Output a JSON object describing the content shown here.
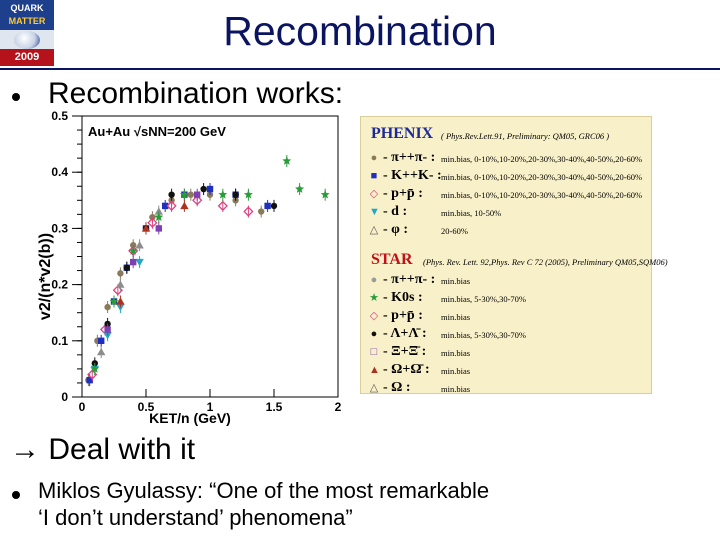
{
  "logo": {
    "line1": "QUARK",
    "line2": "MATTER",
    "year": "2009"
  },
  "title": "Recombination",
  "bullet1": "Recombination works:",
  "arrow_symbol": "→",
  "arrow_text": "Deal with it",
  "quote_line1": "Miklos Gyulassy: “One of the most remarkable",
  "quote_line2": "‘I don’t understand’ phenomena”",
  "chart_data": {
    "type": "scatter",
    "annotation": "Au+Au √sNN=200 GeV",
    "xlabel": "KET/n (GeV)",
    "ylabel": "v2/(n*v2(b))",
    "xlim": [
      0,
      2
    ],
    "ylim": [
      0,
      0.5
    ],
    "x_ticks": [
      "0",
      "0.5",
      "1",
      "1.5",
      "2"
    ],
    "y_ticks": [
      "0",
      "0.1",
      "0.2",
      "0.3",
      "0.4",
      "0.5"
    ],
    "series": [
      {
        "name": "π++π-",
        "color": "#8a7a5a",
        "marker": "circle",
        "points": [
          [
            0.05,
            0.03
          ],
          [
            0.12,
            0.1
          ],
          [
            0.2,
            0.16
          ],
          [
            0.3,
            0.22
          ],
          [
            0.4,
            0.27
          ],
          [
            0.55,
            0.32
          ],
          [
            0.7,
            0.35
          ],
          [
            0.85,
            0.36
          ],
          [
            1.0,
            0.36
          ],
          [
            1.2,
            0.35
          ],
          [
            1.4,
            0.33
          ]
        ]
      },
      {
        "name": "K++K-",
        "color": "#1f2fbf",
        "marker": "square",
        "points": [
          [
            0.06,
            0.03
          ],
          [
            0.15,
            0.1
          ],
          [
            0.25,
            0.17
          ],
          [
            0.35,
            0.23
          ],
          [
            0.5,
            0.3
          ],
          [
            0.65,
            0.34
          ],
          [
            0.8,
            0.36
          ],
          [
            1.0,
            0.37
          ],
          [
            1.2,
            0.36
          ],
          [
            1.45,
            0.34
          ]
        ]
      },
      {
        "name": "p+p̄",
        "color": "#e04080",
        "marker": "diamond",
        "points": [
          [
            0.08,
            0.04
          ],
          [
            0.18,
            0.12
          ],
          [
            0.28,
            0.19
          ],
          [
            0.4,
            0.26
          ],
          [
            0.55,
            0.31
          ],
          [
            0.7,
            0.34
          ],
          [
            0.9,
            0.35
          ],
          [
            1.1,
            0.34
          ],
          [
            1.3,
            0.33
          ]
        ]
      },
      {
        "name": "d",
        "color": "#22a7c8",
        "marker": "triangle-down",
        "points": [
          [
            0.1,
            0.05
          ],
          [
            0.2,
            0.11
          ],
          [
            0.3,
            0.16
          ],
          [
            0.45,
            0.24
          ]
        ]
      },
      {
        "name": "φ",
        "color": "#8d8d8d",
        "marker": "triangle",
        "points": [
          [
            0.15,
            0.08
          ],
          [
            0.3,
            0.2
          ],
          [
            0.45,
            0.27
          ],
          [
            0.6,
            0.33
          ]
        ]
      },
      {
        "name": "Λ+Λ̄",
        "color": "#111111",
        "marker": "circle",
        "points": [
          [
            0.1,
            0.06
          ],
          [
            0.2,
            0.13
          ],
          [
            0.35,
            0.23
          ],
          [
            0.5,
            0.3
          ],
          [
            0.7,
            0.36
          ],
          [
            0.95,
            0.37
          ],
          [
            1.2,
            0.36
          ],
          [
            1.5,
            0.34
          ]
        ]
      },
      {
        "name": "K0s",
        "color": "#2a9d3a",
        "marker": "star",
        "points": [
          [
            0.1,
            0.05
          ],
          [
            0.25,
            0.17
          ],
          [
            0.4,
            0.26
          ],
          [
            0.6,
            0.32
          ],
          [
            0.8,
            0.36
          ],
          [
            1.1,
            0.36
          ],
          [
            1.3,
            0.36
          ],
          [
            1.6,
            0.42
          ],
          [
            1.7,
            0.37
          ],
          [
            1.9,
            0.36
          ]
        ]
      },
      {
        "name": "Ω+Ω̄",
        "color": "#b03020",
        "marker": "triangle",
        "points": [
          [
            0.3,
            0.17
          ],
          [
            0.5,
            0.3
          ],
          [
            0.8,
            0.34
          ]
        ]
      },
      {
        "name": "Ξ+Ξ̄",
        "color": "#7e3fb0",
        "marker": "square",
        "points": [
          [
            0.2,
            0.12
          ],
          [
            0.4,
            0.24
          ],
          [
            0.6,
            0.3
          ],
          [
            0.9,
            0.36
          ]
        ]
      }
    ],
    "legend": {
      "phenix_title": "PHENIX",
      "phenix_ref": "( Phys.Rev.Lett.91, Preliminary: QM05, GRC06 )",
      "phenix_rows": [
        {
          "symbol": "●",
          "color": "#8a7a5a",
          "name": "- π++π- :",
          "centrality": "min.bias, 0-10%,10-20%,20-30%,30-40%,40-50%,20-60%"
        },
        {
          "symbol": "■",
          "color": "#1f2fbf",
          "name": "- K++K- :",
          "centrality": "min.bias, 0-10%,10-20%,20-30%,30-40%,40-50%,20-60%"
        },
        {
          "symbol": "◇",
          "color": "#e04080",
          "name": "- p+p̄ :",
          "centrality": "min.bias, 0-10%,10-20%,20-30%,30-40%,40-50%,20-60%"
        },
        {
          "symbol": "▼",
          "color": "#22a7c8",
          "name": "- d :",
          "centrality": "min.bias, 10-50%"
        },
        {
          "symbol": "△",
          "color": "#555555",
          "name": "- φ :",
          "centrality": "20-60%"
        }
      ],
      "star_title": "STAR",
      "star_ref": "(Phys. Rev. Lett. 92,Phys. Rev C 72 (2005), Preliminary QM05,SQM06)",
      "star_rows": [
        {
          "symbol": "●",
          "color": "#9a9a9a",
          "name": "- π++π- :",
          "centrality": "min.bias"
        },
        {
          "symbol": "★",
          "color": "#2a9d3a",
          "name": "- K0s :",
          "centrality": "min.bias, 5-30%,30-70%"
        },
        {
          "symbol": "◇",
          "color": "#e04080",
          "name": "- p+p̄ :",
          "centrality": "min.bias"
        },
        {
          "symbol": "●",
          "color": "#111111",
          "name": "- Λ+Λ̄ :",
          "centrality": "min.bias, 5-30%,30-70%"
        },
        {
          "symbol": "□",
          "color": "#7e3fb0",
          "name": "- Ξ+Ξ̄ :",
          "centrality": "min.bias"
        },
        {
          "symbol": "▲",
          "color": "#b03020",
          "name": "- Ω+Ω̄ :",
          "centrality": "min.bias"
        },
        {
          "symbol": "△",
          "color": "#555555",
          "name": "- Ω :",
          "centrality": "min.bias"
        }
      ]
    }
  }
}
